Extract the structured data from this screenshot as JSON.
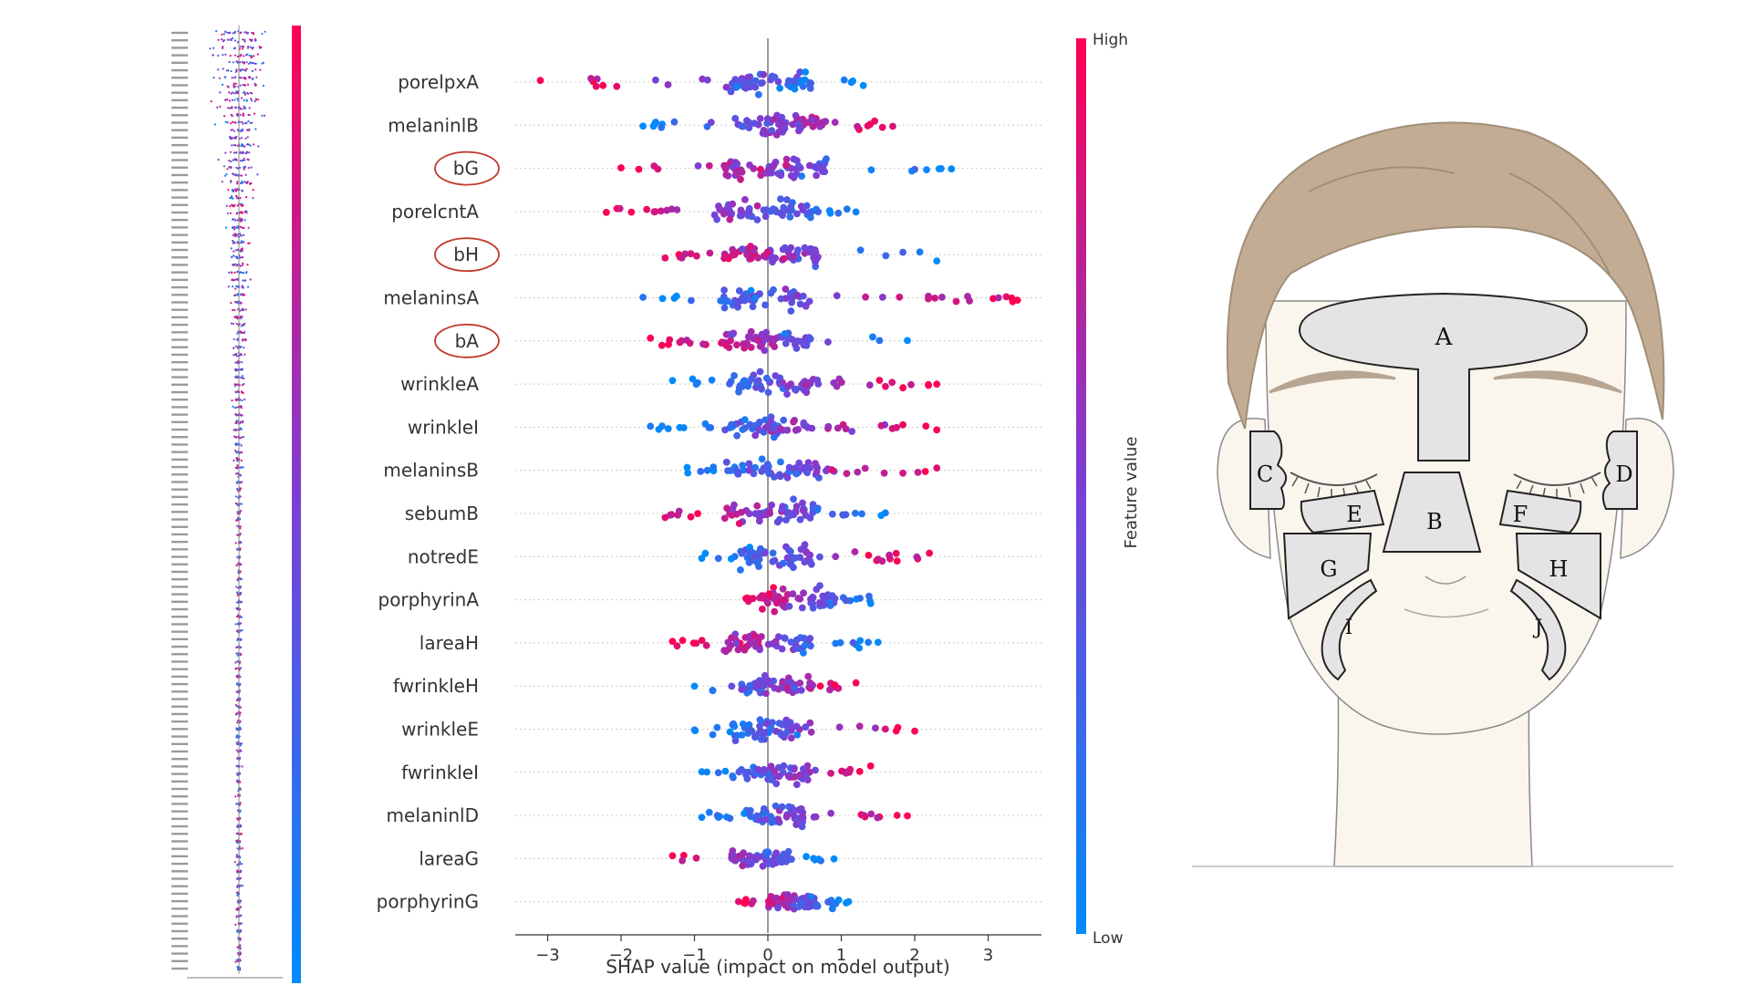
{
  "chart_data": [
    {
      "type": "scatter",
      "subtype": "shap-beeswarm",
      "title": "",
      "xlabel": "SHAP value (impact on model output)",
      "xlim": [
        -3.5,
        3.7
      ],
      "xticks": [
        -3,
        -2,
        -1,
        0,
        1,
        2,
        3
      ],
      "xtick_labels": [
        "−3",
        "−2",
        "−1",
        "0",
        "1",
        "2",
        "3"
      ],
      "colorbar": {
        "label": "Feature value",
        "high": "High",
        "low": "Low",
        "color_high": "#ff0052",
        "color_low": "#008bfb"
      },
      "highlighted_features": [
        "bG",
        "bH",
        "bA"
      ],
      "highlight_color": "#c0392b",
      "features": [
        {
          "name": "porelpxA",
          "min": -3.1,
          "max": 1.3,
          "q1": -0.6,
          "q3": 0.6,
          "density": 0.55,
          "direction": -1
        },
        {
          "name": "melaninlB",
          "min": -1.7,
          "max": 1.7,
          "q1": -0.5,
          "q3": 0.8,
          "density": 0.6,
          "direction": 1
        },
        {
          "name": "bG",
          "min": -2.0,
          "max": 2.5,
          "q1": -0.6,
          "q3": 0.8,
          "density": 0.6,
          "direction": -1
        },
        {
          "name": "porelcntA",
          "min": -2.2,
          "max": 1.2,
          "q1": -0.7,
          "q3": 0.6,
          "density": 0.6,
          "direction": -1
        },
        {
          "name": "bH",
          "min": -1.4,
          "max": 2.3,
          "q1": -0.6,
          "q3": 0.7,
          "density": 0.6,
          "direction": -1
        },
        {
          "name": "melaninsA",
          "min": -1.7,
          "max": 3.4,
          "q1": -0.6,
          "q3": 0.6,
          "density": 0.55,
          "direction": 1
        },
        {
          "name": "bA",
          "min": -1.6,
          "max": 1.9,
          "q1": -0.6,
          "q3": 0.6,
          "density": 0.55,
          "direction": -1
        },
        {
          "name": "wrinkleA",
          "min": -1.3,
          "max": 2.3,
          "q1": -0.5,
          "q3": 0.7,
          "density": 0.55,
          "direction": 1
        },
        {
          "name": "wrinkleI",
          "min": -1.6,
          "max": 2.3,
          "q1": -0.5,
          "q3": 0.6,
          "density": 0.55,
          "direction": 1
        },
        {
          "name": "melaninsB",
          "min": -1.1,
          "max": 2.3,
          "q1": -0.6,
          "q3": 0.7,
          "density": 0.55,
          "direction": 1
        },
        {
          "name": "sebumB",
          "min": -1.4,
          "max": 1.6,
          "q1": -0.6,
          "q3": 0.7,
          "density": 0.55,
          "direction": -1
        },
        {
          "name": "notredE",
          "min": -0.9,
          "max": 2.2,
          "q1": -0.4,
          "q3": 0.6,
          "density": 0.5,
          "direction": 1
        },
        {
          "name": "porphyrinA",
          "min": -0.3,
          "max": 1.4,
          "q1": -0.1,
          "q3": 0.9,
          "density": 0.5,
          "direction": -1
        },
        {
          "name": "lareaH",
          "min": -1.3,
          "max": 1.5,
          "q1": -0.6,
          "q3": 0.6,
          "density": 0.5,
          "direction": -1
        },
        {
          "name": "fwrinkleH",
          "min": -1.0,
          "max": 1.2,
          "q1": -0.4,
          "q3": 0.6,
          "density": 0.5,
          "direction": 1
        },
        {
          "name": "wrinkleE",
          "min": -1.0,
          "max": 2.0,
          "q1": -0.5,
          "q3": 0.6,
          "density": 0.5,
          "direction": 1
        },
        {
          "name": "fwrinkleI",
          "min": -0.9,
          "max": 1.4,
          "q1": -0.3,
          "q3": 0.6,
          "density": 0.5,
          "direction": 1
        },
        {
          "name": "melaninlD",
          "min": -0.9,
          "max": 1.9,
          "q1": -0.3,
          "q3": 0.5,
          "density": 0.5,
          "direction": 1
        },
        {
          "name": "lareaG",
          "min": -1.3,
          "max": 0.9,
          "q1": -0.5,
          "q3": 0.3,
          "density": 0.45,
          "direction": -1
        },
        {
          "name": "porphyrinG",
          "min": -0.4,
          "max": 1.1,
          "q1": 0.0,
          "q3": 0.7,
          "density": 0.45,
          "direction": -1
        }
      ]
    },
    {
      "type": "scatter",
      "subtype": "shap-beeswarm-thumbnail",
      "rows": 126
    }
  ],
  "face_map": {
    "regions": [
      {
        "label": "A"
      },
      {
        "label": "B"
      },
      {
        "label": "C"
      },
      {
        "label": "D"
      },
      {
        "label": "E"
      },
      {
        "label": "F"
      },
      {
        "label": "G"
      },
      {
        "label": "H"
      },
      {
        "label": "I"
      },
      {
        "label": "J"
      }
    ],
    "colors": {
      "hair": "#c2ad94",
      "hair_line": "#a08e77",
      "skin": "#faf6ee",
      "skin_line": "#8a8a8a",
      "region_fill": "#e4e4e4",
      "region_line": "#222222",
      "brow": "#b7a591"
    }
  }
}
